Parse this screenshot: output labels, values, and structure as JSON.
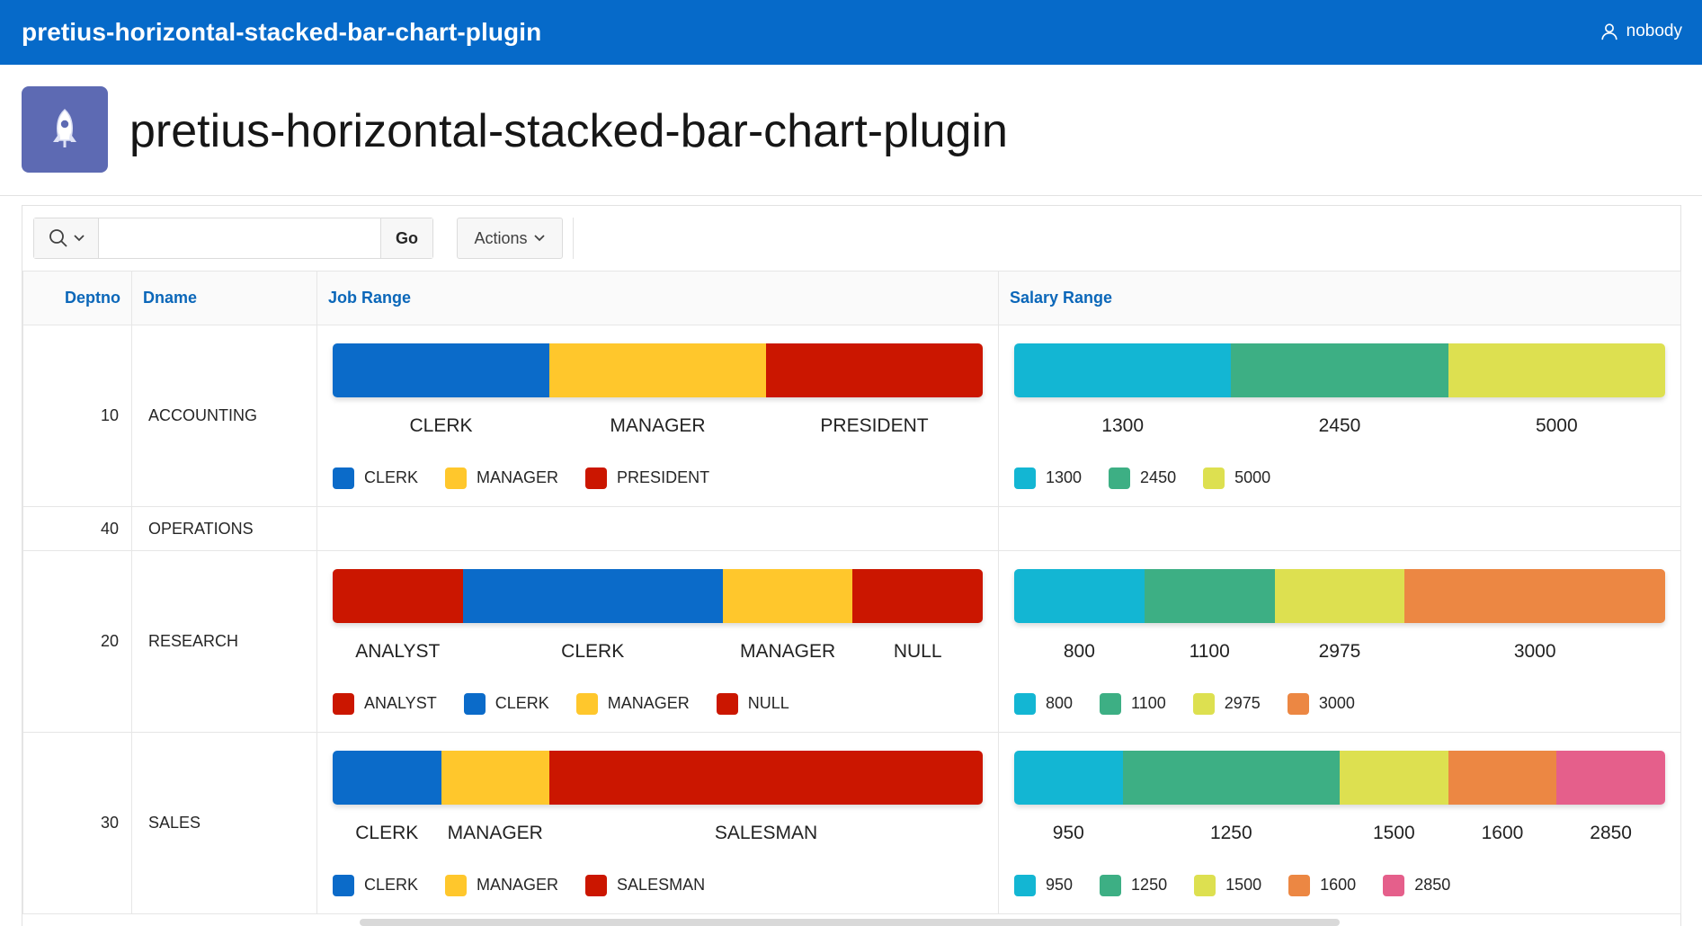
{
  "header": {
    "app_title": "pretius-horizontal-stacked-bar-chart-plugin",
    "user_icon": "user-icon",
    "username": "nobody"
  },
  "hero": {
    "icon": "rocket-icon",
    "title": "pretius-horizontal-stacked-bar-chart-plugin"
  },
  "toolbar": {
    "search_value": "",
    "go_label": "Go",
    "actions_label": "Actions"
  },
  "columns": {
    "deptno": "Deptno",
    "dname": "Dname",
    "job_range": "Job Range",
    "salary_range": "Salary Range"
  },
  "colors": {
    "blue": "#0b6bc9",
    "yellow": "#ffc72c",
    "red": "#cb1600",
    "cyan": "#13b6d3",
    "green": "#3daf84",
    "lime": "#dde050",
    "orange": "#ec8743",
    "pink": "#e55f8b"
  },
  "rows": [
    {
      "deptno": "10",
      "dname": "ACCOUNTING",
      "job": [
        {
          "label": "CLERK",
          "value": 1,
          "color": "#0b6bc9"
        },
        {
          "label": "MANAGER",
          "value": 1,
          "color": "#ffc72c"
        },
        {
          "label": "PRESIDENT",
          "value": 1,
          "color": "#cb1600"
        }
      ],
      "salary": [
        {
          "label": "1300",
          "value": 1,
          "color": "#13b6d3"
        },
        {
          "label": "2450",
          "value": 1,
          "color": "#3daf84"
        },
        {
          "label": "5000",
          "value": 1,
          "color": "#dde050"
        }
      ]
    },
    {
      "deptno": "40",
      "dname": "OPERATIONS",
      "job": [],
      "salary": []
    },
    {
      "deptno": "20",
      "dname": "RESEARCH",
      "job": [
        {
          "label": "ANALYST",
          "value": 1,
          "color": "#cb1600"
        },
        {
          "label": "CLERK",
          "value": 2,
          "color": "#0b6bc9"
        },
        {
          "label": "MANAGER",
          "value": 1,
          "color": "#ffc72c"
        },
        {
          "label": "NULL",
          "value": 1,
          "color": "#cb1600"
        }
      ],
      "salary": [
        {
          "label": "800",
          "value": 1,
          "color": "#13b6d3"
        },
        {
          "label": "1100",
          "value": 1,
          "color": "#3daf84"
        },
        {
          "label": "2975",
          "value": 1,
          "color": "#dde050"
        },
        {
          "label": "3000",
          "value": 2,
          "color": "#ec8743"
        }
      ]
    },
    {
      "deptno": "30",
      "dname": "SALES",
      "job": [
        {
          "label": "CLERK",
          "value": 1,
          "color": "#0b6bc9"
        },
        {
          "label": "MANAGER",
          "value": 1,
          "color": "#ffc72c"
        },
        {
          "label": "SALESMAN",
          "value": 4,
          "color": "#cb1600"
        }
      ],
      "salary": [
        {
          "label": "950",
          "value": 1,
          "color": "#13b6d3"
        },
        {
          "label": "1250",
          "value": 2,
          "color": "#3daf84"
        },
        {
          "label": "1500",
          "value": 1,
          "color": "#dde050"
        },
        {
          "label": "1600",
          "value": 1,
          "color": "#ec8743"
        },
        {
          "label": "2850",
          "value": 1,
          "color": "#e55f8b"
        }
      ]
    }
  ]
}
